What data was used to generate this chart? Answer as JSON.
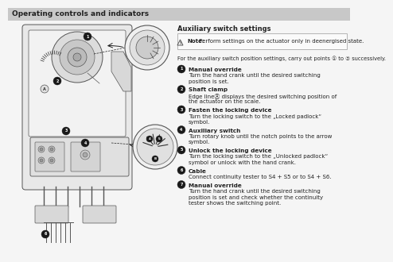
{
  "title": "Operating controls and indicators",
  "title_bg": "#c8c8c8",
  "bg_color": "#f5f5f5",
  "section_title": "Auxiliary switch settings",
  "note_bold": "Note:",
  "note_rest": " Perform settings on the actuator only in deenergised state.",
  "intro_text": "For the auxiliary switch position settings, carry out points ① to ⑦ successively.",
  "steps": [
    {
      "num": "1",
      "bold": "Manual override",
      "text": "Turn the hand crank until the desired switching position is set."
    },
    {
      "num": "2",
      "bold": "Shaft clamp",
      "text": "Edge lineⒶ displays the desired switching position of the actuator on the scale."
    },
    {
      "num": "3",
      "bold": "Fasten the locking device",
      "text": "Turn the locking switch to the „Locked padlock“ symbol."
    },
    {
      "num": "4",
      "bold": "Auxiliary switch",
      "text": "Turn rotary knob until the notch points to the arrow symbol."
    },
    {
      "num": "5",
      "bold": "Unlock the locking device",
      "text": "Turn the locking switch to the „Unlocked padlock“ symbol or unlock with the hand crank."
    },
    {
      "num": "6",
      "bold": "Cable",
      "text": "Connect continuity tester to S4 + S5 or to S4 + S6."
    },
    {
      "num": "7",
      "bold": "Manual override",
      "text": "Turn the hand crank until the desired switching position is set and check whether the continuity tester shows the switching point."
    }
  ],
  "text_color": "#222222",
  "note_border": "#aaaaaa",
  "diagram_body_color": "#e8e8e8",
  "diagram_line_color": "#555555"
}
